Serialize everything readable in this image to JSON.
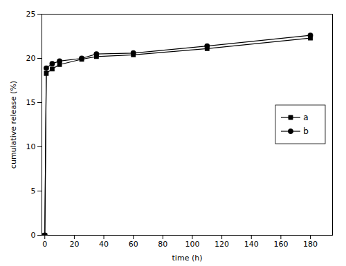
{
  "chart_data": {
    "type": "line",
    "xlabel": "time (h)",
    "ylabel": "cumulative release (%)",
    "x": [
      0,
      1,
      5,
      10,
      25,
      35,
      60,
      110,
      180
    ],
    "series": [
      {
        "name": "a",
        "color": "#000000",
        "marker": "square",
        "line_style": "solid",
        "values": [
          0,
          18.3,
          18.8,
          19.3,
          19.9,
          20.2,
          20.4,
          21.1,
          22.3
        ]
      },
      {
        "name": "b",
        "color": "#000000",
        "marker": "circle",
        "line_style": "solid",
        "values": [
          0,
          18.9,
          19.4,
          19.7,
          20.0,
          20.5,
          20.6,
          21.4,
          22.6
        ]
      }
    ],
    "xlim": [
      -2,
      195
    ],
    "ylim": [
      0,
      25
    ],
    "xticks": [
      0,
      20,
      40,
      60,
      80,
      100,
      120,
      140,
      160,
      180
    ],
    "yticks": [
      0,
      5,
      10,
      15,
      20,
      25
    ],
    "grid": false,
    "legend": "right"
  }
}
